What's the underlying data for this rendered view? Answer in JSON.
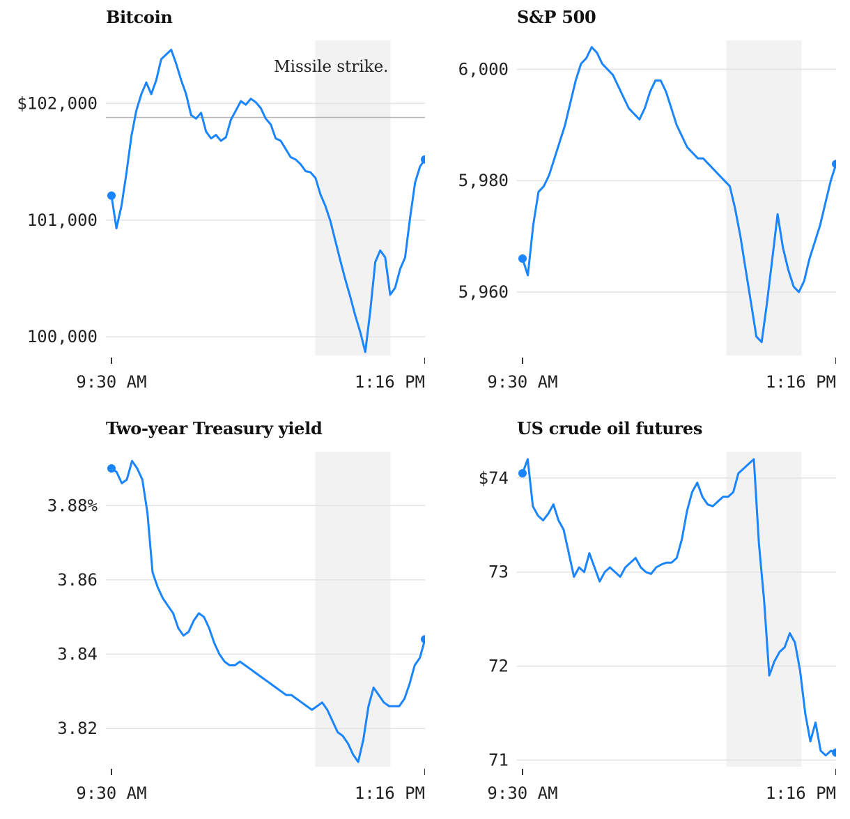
{
  "chart_data": [
    {
      "type": "line",
      "title": "Bitcoin",
      "x_ticks": [
        "9:30 AM",
        "1:16 PM"
      ],
      "y_ticks": [
        {
          "value": 100000,
          "label": "100,000"
        },
        {
          "value": 101000,
          "label": "101,000"
        },
        {
          "value": 102000,
          "label": "$102,000"
        }
      ],
      "ylim": [
        99840,
        102540
      ],
      "shaded_region": {
        "start_fraction": 0.65,
        "end_fraction": 0.89
      },
      "annotation": "Missile strike.",
      "reference_value": 101880,
      "series": [
        {
          "color": "#1a85ff",
          "values": [
            101210,
            100930,
            101120,
            101400,
            101720,
            101940,
            102080,
            102180,
            102080,
            102200,
            102380,
            102420,
            102460,
            102340,
            102200,
            102080,
            101900,
            101870,
            101920,
            101760,
            101700,
            101730,
            101680,
            101710,
            101860,
            101940,
            102020,
            101990,
            102040,
            102010,
            101960,
            101870,
            101820,
            101700,
            101680,
            101610,
            101540,
            101520,
            101480,
            101420,
            101410,
            101360,
            101220,
            101120,
            100990,
            100820,
            100650,
            100490,
            100340,
            100180,
            100040,
            99870,
            100220,
            100640,
            100740,
            100680,
            100360,
            100420,
            100580,
            100680,
            101020,
            101320,
            101460,
            101520
          ]
        }
      ]
    },
    {
      "type": "line",
      "title": "S&P 500",
      "x_ticks": [
        "9:30 AM",
        "1:16 PM"
      ],
      "y_ticks": [
        {
          "value": 5960,
          "label": "5,960"
        },
        {
          "value": 5980,
          "label": "5,980"
        },
        {
          "value": 6000,
          "label": "6,000"
        }
      ],
      "ylim": [
        5948.6,
        6005.2
      ],
      "shaded_region": {
        "start_fraction": 0.65,
        "end_fraction": 0.89
      },
      "series": [
        {
          "color": "#1a85ff",
          "values": [
            5966,
            5963,
            5972,
            5978,
            5979,
            5981,
            5984,
            5987,
            5990,
            5994,
            5998,
            6001,
            6002,
            6004,
            6003,
            6001,
            6000,
            5999,
            5997,
            5995,
            5993,
            5992,
            5991,
            5993,
            5996,
            5998,
            5998,
            5996,
            5993,
            5990,
            5988,
            5986,
            5985,
            5984,
            5984,
            5983,
            5982,
            5981,
            5980,
            5979,
            5975,
            5970,
            5964,
            5958,
            5952,
            5951,
            5958,
            5966,
            5974,
            5968,
            5964,
            5961,
            5960,
            5962,
            5966,
            5969,
            5972,
            5976,
            5980,
            5983
          ]
        }
      ]
    },
    {
      "type": "line",
      "title": "Two-year Treasury yield",
      "x_ticks": [
        "9:30 AM",
        "1:16 PM"
      ],
      "y_ticks": [
        {
          "value": 3.82,
          "label": "3.82"
        },
        {
          "value": 3.84,
          "label": "3.84"
        },
        {
          "value": 3.86,
          "label": "3.86"
        },
        {
          "value": 3.88,
          "label": "3.88%"
        }
      ],
      "ylim": [
        3.8097,
        3.8945
      ],
      "shaded_region": {
        "start_fraction": 0.65,
        "end_fraction": 0.89
      },
      "series": [
        {
          "color": "#1a85ff",
          "values": [
            3.89,
            3.889,
            3.886,
            3.887,
            3.892,
            3.89,
            3.887,
            3.878,
            3.862,
            3.858,
            3.855,
            3.853,
            3.851,
            3.847,
            3.845,
            3.846,
            3.849,
            3.851,
            3.85,
            3.847,
            3.843,
            3.84,
            3.838,
            3.837,
            3.837,
            3.838,
            3.837,
            3.836,
            3.835,
            3.834,
            3.833,
            3.832,
            3.831,
            3.83,
            3.829,
            3.829,
            3.828,
            3.827,
            3.826,
            3.825,
            3.826,
            3.827,
            3.825,
            3.822,
            3.819,
            3.818,
            3.816,
            3.813,
            3.811,
            3.817,
            3.826,
            3.831,
            3.829,
            3.827,
            3.826,
            3.826,
            3.826,
            3.828,
            3.832,
            3.837,
            3.839,
            3.844
          ]
        }
      ]
    },
    {
      "type": "line",
      "title": "US crude oil futures",
      "x_ticks": [
        "9:30 AM",
        "1:16 PM"
      ],
      "y_ticks": [
        {
          "value": 71,
          "label": "71"
        },
        {
          "value": 72,
          "label": "72"
        },
        {
          "value": 73,
          "label": "73"
        },
        {
          "value": 74,
          "label": "$74"
        }
      ],
      "ylim": [
        70.93,
        74.28
      ],
      "shaded_region": {
        "start_fraction": 0.65,
        "end_fraction": 0.89
      },
      "series": [
        {
          "color": "#1a85ff",
          "values": [
            74.05,
            74.2,
            73.7,
            73.6,
            73.55,
            73.62,
            73.72,
            73.55,
            73.45,
            73.2,
            72.95,
            73.05,
            73.0,
            73.2,
            73.05,
            72.9,
            73.0,
            73.05,
            73.0,
            72.95,
            73.05,
            73.1,
            73.15,
            73.05,
            73.0,
            72.98,
            73.05,
            73.08,
            73.1,
            73.1,
            73.15,
            73.35,
            73.65,
            73.85,
            73.95,
            73.8,
            73.72,
            73.7,
            73.75,
            73.8,
            73.8,
            73.85,
            74.05,
            74.1,
            74.15,
            74.2,
            73.3,
            72.7,
            71.9,
            72.05,
            72.15,
            72.2,
            72.35,
            72.25,
            71.95,
            71.5,
            71.2,
            71.4,
            71.1,
            71.05,
            71.1,
            71.08
          ]
        }
      ]
    }
  ]
}
